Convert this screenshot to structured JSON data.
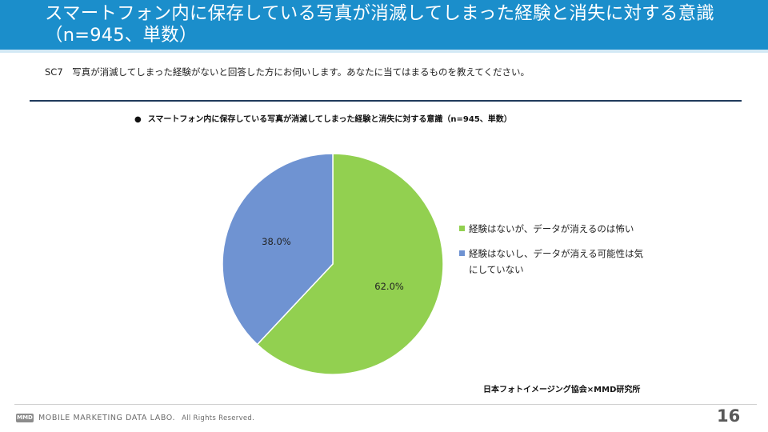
{
  "header": {
    "title": "スマートフォン内に保存している写真が消滅してしまった経験と消失に対する意識（n=945、単数）"
  },
  "question": "SC7　写真が消滅してしまった経験がないと回答した方にお伺いします。あなたに当てはまるものを教えてください。",
  "chart_heading": {
    "bullet": "●",
    "text": "スマートフォン内に保存している写真が消滅してしまった経験と消失に対する意識（n=945、単数）"
  },
  "chart_data": {
    "type": "pie",
    "title": "スマートフォン内に保存している写真が消滅してしまった経験と消失に対する意識（n=945、単数）",
    "unit": "%",
    "slices": [
      {
        "label": "経験はないが、データが消えるのは怖い",
        "value": 62.0,
        "display": "62.0%",
        "color": "#92d050"
      },
      {
        "label": "経験はないし、データが消える可能性は気にしていない",
        "value": 38.0,
        "display": "38.0%",
        "color": "#6f93d2"
      }
    ],
    "legend_position": "right"
  },
  "legend": {
    "items": [
      {
        "label": "経験はないが、データが消えるのは怖い"
      },
      {
        "label": "経験はないし、データが消える可能性は気にしていない"
      }
    ]
  },
  "credit": "日本フォトイメージング協会×MMD研究所",
  "footer": {
    "logo_mark": "MMD",
    "brand": "MOBILE MARKETING DATA LABO.",
    "rights": "All Rights Reserved.",
    "page_number": "16"
  }
}
